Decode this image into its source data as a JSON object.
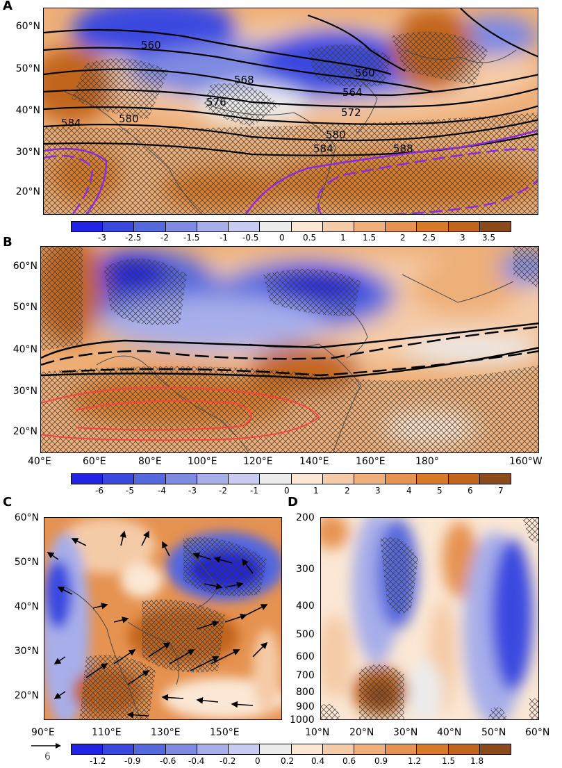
{
  "panels": {
    "A": {
      "label": "A",
      "lat_ticks": [
        "60°N",
        "50°N",
        "40°N",
        "30°N",
        "20°N"
      ],
      "contour_labels": [
        "560",
        "560",
        "568",
        "564",
        "576",
        "572",
        "580",
        "584",
        "580",
        "584",
        "588"
      ],
      "colorbar_labels": [
        "-3",
        "-2.5",
        "-2",
        "-1.5",
        "-1",
        "-0.5",
        "0",
        "0.5",
        "1",
        "1.5",
        "2",
        "2.5",
        "3",
        "3.5"
      ]
    },
    "B": {
      "label": "B",
      "lat_ticks": [
        "60°N",
        "50°N",
        "40°N",
        "30°N",
        "20°N"
      ],
      "lon_ticks": [
        "40°E",
        "60°E",
        "80°E",
        "100°E",
        "120°E",
        "140°E",
        "160°E",
        "180°",
        "160°W"
      ],
      "colorbar_labels": [
        "-6",
        "-5",
        "-4",
        "-3",
        "-2",
        "-1",
        "0",
        "1",
        "2",
        "3",
        "4",
        "5",
        "6",
        "7"
      ]
    },
    "C": {
      "label": "C",
      "lat_ticks": [
        "60°N",
        "50°N",
        "40°N",
        "30°N",
        "20°N"
      ],
      "lon_ticks": [
        "90°E",
        "110°E",
        "130°E",
        "150°E"
      ],
      "vector_scale_label": "6"
    },
    "D": {
      "label": "D",
      "pressure_ticks": [
        "200",
        "300",
        "400",
        "500",
        "600",
        "700",
        "800",
        "900",
        "1000"
      ],
      "lat_ticks": [
        "10°N",
        "20°N",
        "30°N",
        "40°N",
        "50°N",
        "60°N"
      ]
    },
    "CD_colorbar_labels": [
      "-1.2",
      "-0.9",
      "-0.6",
      "-0.4",
      "-0.2",
      "0",
      "0.2",
      "0.4",
      "0.6",
      "0.9",
      "1.2",
      "1.5",
      "1.8"
    ]
  },
  "palette": {
    "colors": [
      "#2323e6",
      "#3b48e0",
      "#5669dc",
      "#7f8ae2",
      "#a7aeea",
      "#c9ccf0",
      "#ececec",
      "#fbe7d4",
      "#f5cba7",
      "#eeaf78",
      "#e69250",
      "#d97a28",
      "#c2651a",
      "#8a4a1a"
    ],
    "hatch": "#3a3a3a",
    "westerly_jet": "#000000",
    "high_588": "#8a2be2",
    "south_asia_high": "#ff4040"
  }
}
